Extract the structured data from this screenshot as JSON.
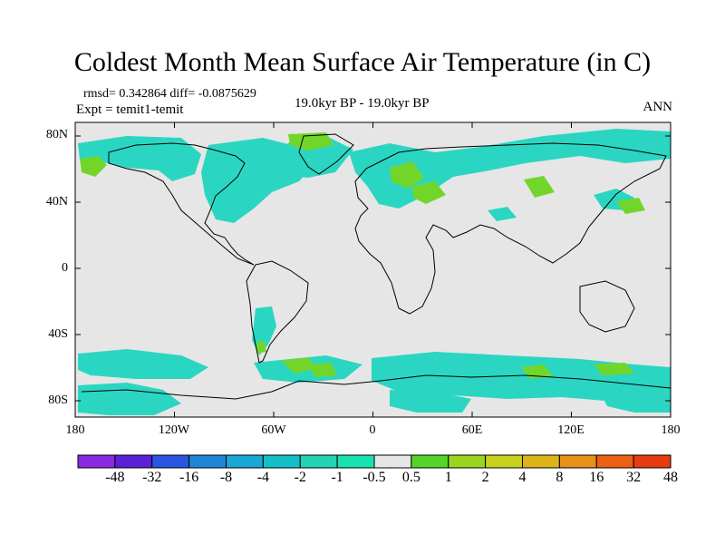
{
  "title": "Coldest Month Mean Surface Air Temperature (in C)",
  "stats": {
    "rmsd": "rmsd= 0.342864 diff= -0.0875629",
    "expt": "Expt = temit1-temit"
  },
  "period": "19.0kyr BP - 19.0kyr BP",
  "season": "ANN",
  "lat_labels": [
    "80N",
    "40N",
    "0",
    "40S",
    "80S"
  ],
  "lon_labels": [
    "180",
    "120W",
    "60W",
    "0",
    "60E",
    "120E",
    "180"
  ],
  "colorbar": {
    "labels": [
      "-48",
      "-32",
      "-16",
      "-8",
      "-4",
      "-2",
      "-1",
      "-0.5",
      "0.5",
      "1",
      "2",
      "4",
      "8",
      "16",
      "32",
      "48"
    ],
    "colors": [
      "#8a2be2",
      "#5a1fd6",
      "#2a55e0",
      "#1f86d8",
      "#1aa6d6",
      "#14c0c8",
      "#24d2b4",
      "#18e3b0",
      "#e6e6e6",
      "#55d52a",
      "#9ad51e",
      "#c8d21a",
      "#dcb41a",
      "#e8901a",
      "#ec6014",
      "#e63c10"
    ]
  },
  "colors": {
    "ocean_land_neutral": "#e6e6e6",
    "cool_anomaly": "#2ad6c2",
    "warm_anomaly": "#72d62a",
    "coast": "#000000"
  }
}
